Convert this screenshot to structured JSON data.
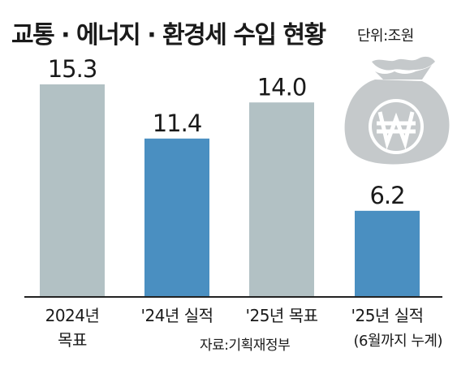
{
  "title": "교통 · 에너지 · 환경세 수입 현황",
  "unit": "단위:조원",
  "source": "자료:기획재정부",
  "colors": {
    "target": "#b2c1c4",
    "actual": "#4a8fc1",
    "moneybag": "#c5c9cb",
    "baseline": "#222222"
  },
  "icon": "money-bag-won-icon",
  "chart_data": {
    "type": "bar",
    "categories": [
      [
        "2024년",
        "목표"
      ],
      [
        "'24년 실적"
      ],
      [
        "'25년 목표"
      ],
      [
        "'25년 실적",
        "(6월까지 누계)"
      ]
    ],
    "values": [
      15.3,
      11.4,
      14.0,
      6.2
    ],
    "labels": [
      "15.3",
      "11.4",
      "14.0",
      "6.2"
    ],
    "bar_kind": [
      "target",
      "actual",
      "target",
      "actual"
    ],
    "ylim": [
      0,
      16.5
    ]
  }
}
